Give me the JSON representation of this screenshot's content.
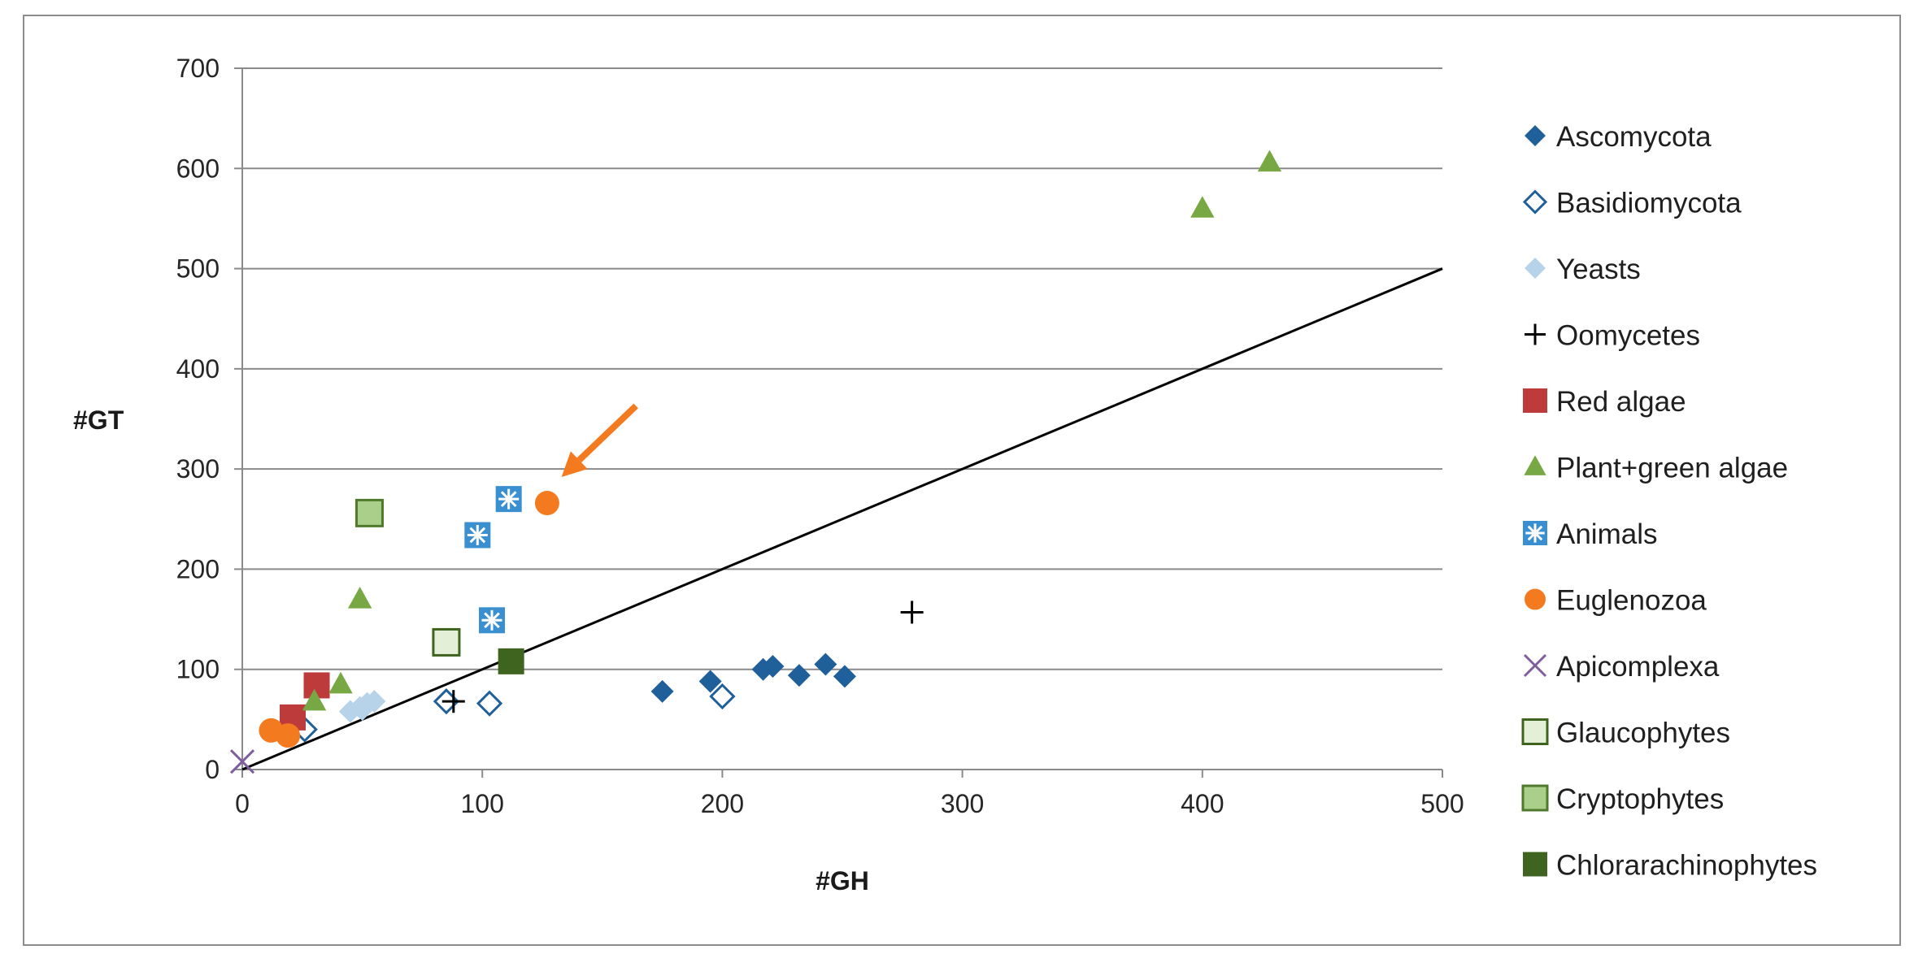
{
  "chart_data": {
    "type": "scatter",
    "title": "",
    "xlabel": "#GH",
    "ylabel": "#GT",
    "xlim": [
      0,
      500
    ],
    "ylim": [
      0,
      700
    ],
    "xticks": [
      0,
      100,
      200,
      300,
      400,
      500
    ],
    "yticks": [
      0,
      100,
      200,
      300,
      400,
      500,
      600,
      700
    ],
    "grid": "horizontal",
    "legend_position": "right",
    "reference_line": {
      "from": [
        0,
        0
      ],
      "to": [
        500,
        500
      ],
      "color": "#000000"
    },
    "annotation": {
      "type": "arrow",
      "color": "#f47a1f",
      "from": [
        164,
        363
      ],
      "to": [
        133,
        292
      ]
    },
    "series": [
      {
        "name": "Ascomycota",
        "marker": "diamond",
        "color": "#1f5f9a",
        "points": [
          [
            175,
            78
          ],
          [
            195,
            88
          ],
          [
            217,
            100
          ],
          [
            221,
            103
          ],
          [
            232,
            94
          ],
          [
            243,
            105
          ],
          [
            251,
            93
          ]
        ]
      },
      {
        "name": "Basidiomycota",
        "marker": "diamond-open",
        "color": "#1f5f9a",
        "points": [
          [
            26,
            40
          ],
          [
            85,
            68
          ],
          [
            103,
            66
          ],
          [
            200,
            73
          ]
        ]
      },
      {
        "name": "Yeasts",
        "marker": "diamond",
        "color": "#b7d3ea",
        "points": [
          [
            45,
            58
          ],
          [
            49,
            62
          ],
          [
            52,
            66
          ],
          [
            55,
            68
          ],
          [
            50,
            60
          ]
        ]
      },
      {
        "name": "Oomycetes",
        "marker": "plus",
        "color": "#000000",
        "points": [
          [
            88,
            68
          ],
          [
            279,
            157
          ]
        ]
      },
      {
        "name": "Red algae",
        "marker": "square",
        "color": "#be3b3b",
        "points": [
          [
            21,
            52
          ],
          [
            31,
            84
          ]
        ]
      },
      {
        "name": "Plant+green algae",
        "marker": "triangle",
        "color": "#78a844",
        "points": [
          [
            30,
            68
          ],
          [
            41,
            85
          ],
          [
            49,
            170
          ],
          [
            400,
            560
          ],
          [
            428,
            606
          ]
        ]
      },
      {
        "name": "Animals",
        "marker": "star-box",
        "color": "#3a8fd0",
        "points": [
          [
            98,
            234
          ],
          [
            104,
            149
          ],
          [
            111,
            270
          ]
        ]
      },
      {
        "name": "Euglenozoa",
        "marker": "circle",
        "color": "#f47a1f",
        "points": [
          [
            12,
            39
          ],
          [
            19,
            34
          ],
          [
            127,
            266
          ]
        ]
      },
      {
        "name": "Apicomplexa",
        "marker": "x",
        "color": "#7e5ea0",
        "points": [
          [
            0,
            8
          ]
        ]
      },
      {
        "name": "Glaucophytes",
        "marker": "square-light",
        "color": "#e4efd8",
        "points": [
          [
            85,
            127
          ]
        ]
      },
      {
        "name": "Cryptophytes",
        "marker": "square-mid",
        "color": "#aacf8a",
        "points": [
          [
            53,
            256
          ]
        ]
      },
      {
        "name": "Chlorarachinophytes",
        "marker": "square",
        "color": "#3e6420",
        "points": [
          [
            112,
            108
          ]
        ]
      }
    ]
  }
}
